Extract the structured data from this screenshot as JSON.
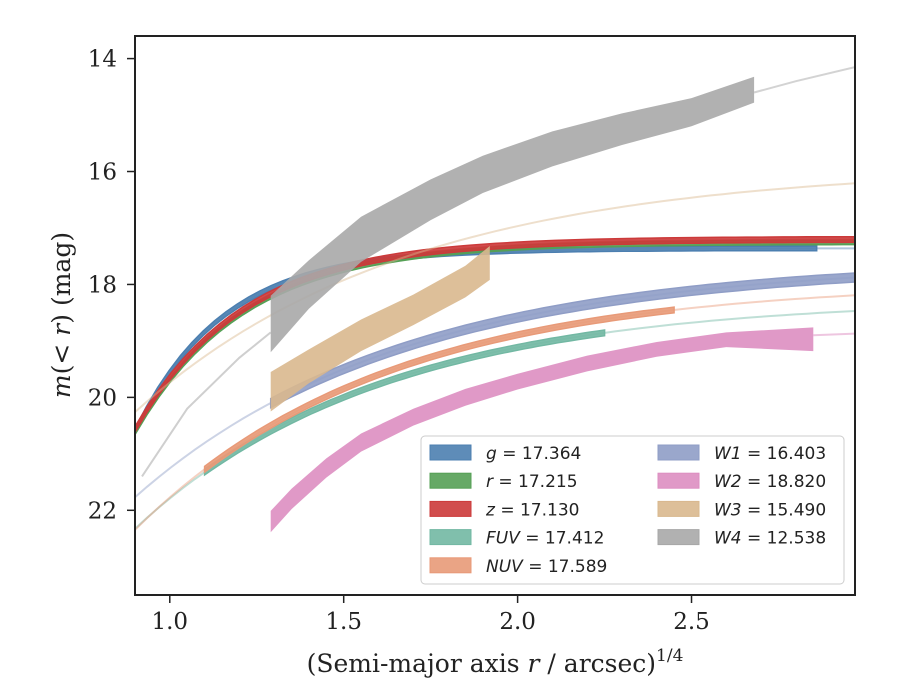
{
  "chart_data": {
    "type": "line",
    "xlabel": "(Semi-major axis r / arcsec)",
    "xlabel_parts": {
      "open": "(Semi-major axis ",
      "var": "r",
      "close": " / arcsec)",
      "sup": "1/4"
    },
    "ylabel": "m(< r) (mag)",
    "ylabel_parts": {
      "m": "m",
      "open": "(",
      "lt": "< ",
      "r": "r",
      "close": ")",
      "unit": " (mag)"
    },
    "xlim": [
      0.9,
      2.97
    ],
    "ylim": [
      23.5,
      13.6
    ],
    "y_inverted": true,
    "x_ticks": [
      1.0,
      1.5,
      2.0,
      2.5
    ],
    "x_tick_labels": [
      "1.0",
      "1.5",
      "2.0",
      "2.5"
    ],
    "y_ticks": [
      14,
      16,
      18,
      20,
      22
    ],
    "y_tick_labels": [
      "14",
      "16",
      "18",
      "20",
      "22"
    ],
    "grid": false,
    "legend_position": "lower-right",
    "legend_columns": 2,
    "series": [
      {
        "name": "g",
        "value": "17.364",
        "color": "#4c7fb0",
        "model": {
          "m_inf": 17.36,
          "a": 108.0,
          "k": 3.9,
          "x0": 0.9,
          "x1": 2.97
        },
        "band": {
          "x0": 0.9,
          "x1": 2.86,
          "width": 0.08
        }
      },
      {
        "name": "r",
        "value": "17.215",
        "color": "#55a055",
        "model": {
          "m_inf": 17.25,
          "a": 60.0,
          "k": 3.2,
          "x0": 0.9,
          "x1": 2.97
        },
        "band": {
          "x0": 0.9,
          "x1": 2.97,
          "width": 0.08
        }
      },
      {
        "name": "z",
        "value": "17.130",
        "color": "#cc3a3a",
        "model": {
          "m_inf": 17.2,
          "a": 60.0,
          "k": 3.2,
          "x0": 0.9,
          "x1": 2.97
        },
        "band": {
          "x0": 0.9,
          "x1": 2.97,
          "width": 0.1
        }
      },
      {
        "name": "FUV",
        "value": "17.412",
        "color": "#72b8a3",
        "model": {
          "m_inf": 18.25,
          "a": 14.5,
          "k": 1.41,
          "x0": 0.9,
          "x1": 2.97
        },
        "band": {
          "x0": 1.1,
          "x1": 2.25,
          "width": 0.1
        }
      },
      {
        "name": "NUV",
        "value": "17.589",
        "color": "#e89a78",
        "model": {
          "m_inf": 17.95,
          "a": 15.5,
          "k": 1.4,
          "x0": 0.9,
          "x1": 2.97
        },
        "band": {
          "x0": 1.1,
          "x1": 2.45,
          "width": 0.1
        }
      },
      {
        "name": "W1",
        "value": "16.403",
        "color": "#8f9dc6",
        "model": {
          "m_inf": 17.6,
          "a": 13.55,
          "k": 1.31,
          "x0": 0.9,
          "x1": 2.97
        },
        "band": {
          "x0": 1.29,
          "x1": 2.97,
          "width": 0.16
        }
      },
      {
        "name": "W2",
        "value": "18.820",
        "color": "#dd8ec1",
        "points": [
          [
            1.29,
            22.2
          ],
          [
            1.35,
            21.8
          ],
          [
            1.45,
            21.25
          ],
          [
            1.55,
            20.8
          ],
          [
            1.7,
            20.35
          ],
          [
            1.85,
            20.0
          ],
          [
            2.0,
            19.72
          ],
          [
            2.2,
            19.4
          ],
          [
            2.4,
            19.15
          ],
          [
            2.6,
            18.98
          ],
          [
            2.85,
            18.97
          ]
        ],
        "band_width": [
          0.38,
          0.36,
          0.34,
          0.32,
          0.3,
          0.3,
          0.28,
          0.28,
          0.26,
          0.26,
          0.42
        ],
        "extension": [
          [
            2.85,
            18.9
          ],
          [
            2.97,
            18.87
          ]
        ]
      },
      {
        "name": "W3",
        "value": "15.490",
        "color": "#d9b88e",
        "points": [
          [
            1.29,
            19.9
          ],
          [
            1.4,
            19.45
          ],
          [
            1.55,
            18.9
          ],
          [
            1.7,
            18.45
          ],
          [
            1.85,
            17.95
          ],
          [
            1.92,
            17.62
          ]
        ],
        "band_width": [
          0.7,
          0.6,
          0.56,
          0.54,
          0.56,
          0.6
        ],
        "extension_model": {
          "m_inf": 15.9,
          "a": 13.8,
          "k": 1.28,
          "x0": 0.9,
          "x1": 2.97
        }
      },
      {
        "name": "W4",
        "value": "12.538",
        "color": "#a8a8a8",
        "points": [
          [
            1.29,
            18.7
          ],
          [
            1.4,
            18.0
          ],
          [
            1.55,
            17.2
          ],
          [
            1.75,
            16.5
          ],
          [
            1.9,
            16.05
          ],
          [
            2.1,
            15.6
          ],
          [
            2.3,
            15.25
          ],
          [
            2.5,
            14.95
          ],
          [
            2.68,
            14.55
          ]
        ],
        "band_width": [
          1.0,
          0.86,
          0.8,
          0.72,
          0.66,
          0.62,
          0.56,
          0.5,
          0.46
        ],
        "extension": [
          [
            2.68,
            14.6
          ],
          [
            2.8,
            14.4
          ],
          [
            2.97,
            14.15
          ]
        ],
        "inner": [
          [
            0.92,
            21.4
          ],
          [
            1.05,
            20.2
          ],
          [
            1.2,
            19.3
          ],
          [
            1.29,
            18.85
          ]
        ]
      }
    ]
  }
}
